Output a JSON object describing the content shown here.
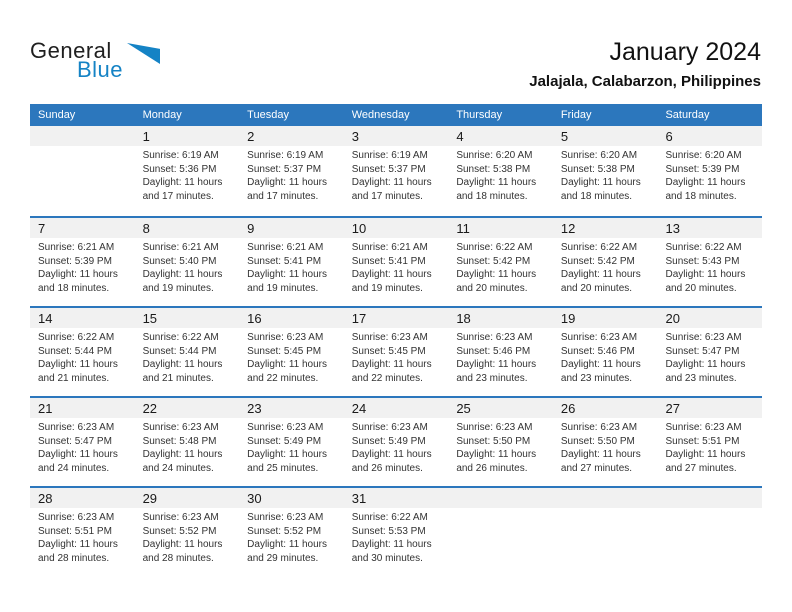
{
  "logo": {
    "part1": "General",
    "part2": "Blue"
  },
  "title": "January 2024",
  "subtitle": "Jalajala, Calabarzon, Philippines",
  "weekdays": [
    "Sunday",
    "Monday",
    "Tuesday",
    "Wednesday",
    "Thursday",
    "Friday",
    "Saturday"
  ],
  "colors": {
    "header_blue": "#2C77BD",
    "separator_blue": "#2C77BD",
    "logo_blue": "#1583C5",
    "date_band_gray": "#F1F1F1"
  },
  "weeks": [
    [
      null,
      {
        "day": "1",
        "sunrise": "Sunrise: 6:19 AM",
        "sunset": "Sunset: 5:36 PM",
        "daylight1": "Daylight: 11 hours",
        "daylight2": "and 17 minutes."
      },
      {
        "day": "2",
        "sunrise": "Sunrise: 6:19 AM",
        "sunset": "Sunset: 5:37 PM",
        "daylight1": "Daylight: 11 hours",
        "daylight2": "and 17 minutes."
      },
      {
        "day": "3",
        "sunrise": "Sunrise: 6:19 AM",
        "sunset": "Sunset: 5:37 PM",
        "daylight1": "Daylight: 11 hours",
        "daylight2": "and 17 minutes."
      },
      {
        "day": "4",
        "sunrise": "Sunrise: 6:20 AM",
        "sunset": "Sunset: 5:38 PM",
        "daylight1": "Daylight: 11 hours",
        "daylight2": "and 18 minutes."
      },
      {
        "day": "5",
        "sunrise": "Sunrise: 6:20 AM",
        "sunset": "Sunset: 5:38 PM",
        "daylight1": "Daylight: 11 hours",
        "daylight2": "and 18 minutes."
      },
      {
        "day": "6",
        "sunrise": "Sunrise: 6:20 AM",
        "sunset": "Sunset: 5:39 PM",
        "daylight1": "Daylight: 11 hours",
        "daylight2": "and 18 minutes."
      }
    ],
    [
      {
        "day": "7",
        "sunrise": "Sunrise: 6:21 AM",
        "sunset": "Sunset: 5:39 PM",
        "daylight1": "Daylight: 11 hours",
        "daylight2": "and 18 minutes."
      },
      {
        "day": "8",
        "sunrise": "Sunrise: 6:21 AM",
        "sunset": "Sunset: 5:40 PM",
        "daylight1": "Daylight: 11 hours",
        "daylight2": "and 19 minutes."
      },
      {
        "day": "9",
        "sunrise": "Sunrise: 6:21 AM",
        "sunset": "Sunset: 5:41 PM",
        "daylight1": "Daylight: 11 hours",
        "daylight2": "and 19 minutes."
      },
      {
        "day": "10",
        "sunrise": "Sunrise: 6:21 AM",
        "sunset": "Sunset: 5:41 PM",
        "daylight1": "Daylight: 11 hours",
        "daylight2": "and 19 minutes."
      },
      {
        "day": "11",
        "sunrise": "Sunrise: 6:22 AM",
        "sunset": "Sunset: 5:42 PM",
        "daylight1": "Daylight: 11 hours",
        "daylight2": "and 20 minutes."
      },
      {
        "day": "12",
        "sunrise": "Sunrise: 6:22 AM",
        "sunset": "Sunset: 5:42 PM",
        "daylight1": "Daylight: 11 hours",
        "daylight2": "and 20 minutes."
      },
      {
        "day": "13",
        "sunrise": "Sunrise: 6:22 AM",
        "sunset": "Sunset: 5:43 PM",
        "daylight1": "Daylight: 11 hours",
        "daylight2": "and 20 minutes."
      }
    ],
    [
      {
        "day": "14",
        "sunrise": "Sunrise: 6:22 AM",
        "sunset": "Sunset: 5:44 PM",
        "daylight1": "Daylight: 11 hours",
        "daylight2": "and 21 minutes."
      },
      {
        "day": "15",
        "sunrise": "Sunrise: 6:22 AM",
        "sunset": "Sunset: 5:44 PM",
        "daylight1": "Daylight: 11 hours",
        "daylight2": "and 21 minutes."
      },
      {
        "day": "16",
        "sunrise": "Sunrise: 6:23 AM",
        "sunset": "Sunset: 5:45 PM",
        "daylight1": "Daylight: 11 hours",
        "daylight2": "and 22 minutes."
      },
      {
        "day": "17",
        "sunrise": "Sunrise: 6:23 AM",
        "sunset": "Sunset: 5:45 PM",
        "daylight1": "Daylight: 11 hours",
        "daylight2": "and 22 minutes."
      },
      {
        "day": "18",
        "sunrise": "Sunrise: 6:23 AM",
        "sunset": "Sunset: 5:46 PM",
        "daylight1": "Daylight: 11 hours",
        "daylight2": "and 23 minutes."
      },
      {
        "day": "19",
        "sunrise": "Sunrise: 6:23 AM",
        "sunset": "Sunset: 5:46 PM",
        "daylight1": "Daylight: 11 hours",
        "daylight2": "and 23 minutes."
      },
      {
        "day": "20",
        "sunrise": "Sunrise: 6:23 AM",
        "sunset": "Sunset: 5:47 PM",
        "daylight1": "Daylight: 11 hours",
        "daylight2": "and 23 minutes."
      }
    ],
    [
      {
        "day": "21",
        "sunrise": "Sunrise: 6:23 AM",
        "sunset": "Sunset: 5:47 PM",
        "daylight1": "Daylight: 11 hours",
        "daylight2": "and 24 minutes."
      },
      {
        "day": "22",
        "sunrise": "Sunrise: 6:23 AM",
        "sunset": "Sunset: 5:48 PM",
        "daylight1": "Daylight: 11 hours",
        "daylight2": "and 24 minutes."
      },
      {
        "day": "23",
        "sunrise": "Sunrise: 6:23 AM",
        "sunset": "Sunset: 5:49 PM",
        "daylight1": "Daylight: 11 hours",
        "daylight2": "and 25 minutes."
      },
      {
        "day": "24",
        "sunrise": "Sunrise: 6:23 AM",
        "sunset": "Sunset: 5:49 PM",
        "daylight1": "Daylight: 11 hours",
        "daylight2": "and 26 minutes."
      },
      {
        "day": "25",
        "sunrise": "Sunrise: 6:23 AM",
        "sunset": "Sunset: 5:50 PM",
        "daylight1": "Daylight: 11 hours",
        "daylight2": "and 26 minutes."
      },
      {
        "day": "26",
        "sunrise": "Sunrise: 6:23 AM",
        "sunset": "Sunset: 5:50 PM",
        "daylight1": "Daylight: 11 hours",
        "daylight2": "and 27 minutes."
      },
      {
        "day": "27",
        "sunrise": "Sunrise: 6:23 AM",
        "sunset": "Sunset: 5:51 PM",
        "daylight1": "Daylight: 11 hours",
        "daylight2": "and 27 minutes."
      }
    ],
    [
      {
        "day": "28",
        "sunrise": "Sunrise: 6:23 AM",
        "sunset": "Sunset: 5:51 PM",
        "daylight1": "Daylight: 11 hours",
        "daylight2": "and 28 minutes."
      },
      {
        "day": "29",
        "sunrise": "Sunrise: 6:23 AM",
        "sunset": "Sunset: 5:52 PM",
        "daylight1": "Daylight: 11 hours",
        "daylight2": "and 28 minutes."
      },
      {
        "day": "30",
        "sunrise": "Sunrise: 6:23 AM",
        "sunset": "Sunset: 5:52 PM",
        "daylight1": "Daylight: 11 hours",
        "daylight2": "and 29 minutes."
      },
      {
        "day": "31",
        "sunrise": "Sunrise: 6:22 AM",
        "sunset": "Sunset: 5:53 PM",
        "daylight1": "Daylight: 11 hours",
        "daylight2": "and 30 minutes."
      },
      null,
      null,
      null
    ]
  ]
}
